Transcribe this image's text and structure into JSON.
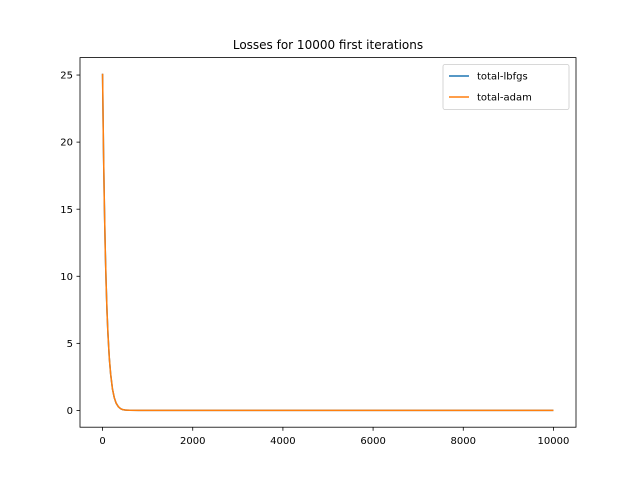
{
  "chart_data": {
    "type": "line",
    "title": "Losses for 10000 first iterations",
    "xlabel": "",
    "ylabel": "",
    "xlim": [
      -500,
      10500
    ],
    "ylim": [
      -1.25,
      26.3
    ],
    "xticks": [
      0,
      2000,
      4000,
      6000,
      8000,
      10000
    ],
    "yticks": [
      0,
      5,
      10,
      15,
      20,
      25
    ],
    "grid": false,
    "legend_position": "top-right",
    "series": [
      {
        "name": "total-lbfgs",
        "color": "#1f77b4",
        "x": [
          0,
          20,
          40,
          60,
          80,
          100,
          120,
          150,
          180,
          220,
          260,
          300,
          350,
          400,
          450,
          500,
          600,
          800,
          1000,
          2000,
          4000,
          6000,
          8000,
          10000
        ],
        "y": [
          25.1,
          19.6,
          15.4,
          12.0,
          9.4,
          7.3,
          5.7,
          3.9,
          2.7,
          1.6,
          0.95,
          0.55,
          0.28,
          0.13,
          0.06,
          0.03,
          0.01,
          0.0,
          0.0,
          0.0,
          0.0,
          0.0,
          0.0,
          0.0
        ]
      },
      {
        "name": "total-adam",
        "color": "#ff7f0e",
        "x": [
          0,
          20,
          40,
          60,
          80,
          100,
          120,
          150,
          180,
          220,
          260,
          300,
          350,
          400,
          450,
          500,
          600,
          800,
          1000,
          2000,
          4000,
          6000,
          8000,
          10000
        ],
        "y": [
          25.1,
          19.6,
          15.4,
          12.0,
          9.4,
          7.3,
          5.7,
          3.9,
          2.7,
          1.6,
          0.95,
          0.55,
          0.28,
          0.13,
          0.06,
          0.03,
          0.01,
          0.0,
          0.0,
          0.0,
          0.0,
          0.0,
          0.0,
          0.0
        ]
      }
    ]
  }
}
